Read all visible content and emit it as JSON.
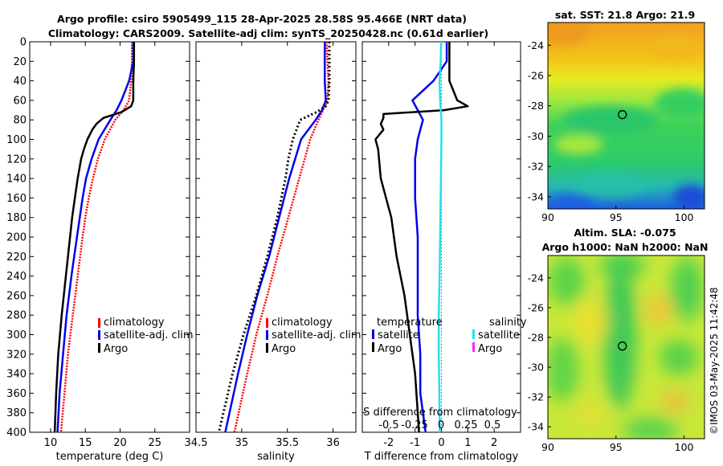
{
  "figure": {
    "title_line1": "Argo profile: csiro 5905499_115 28-Apr-2025 28.58S 95.466E (NRT data)",
    "title_line2": "Climatology: CARS2009. Satellite-adj clim: synTS_20250428.nc (0.61d earlier)",
    "stamp": "©IMOS 03-May-2025 11:42:48",
    "colors": {
      "climatology": "#ff0000",
      "satellite": "#0000ee",
      "argo": "#000000",
      "sat_salinity": "#22e0f0",
      "argo_salinity": "#ff22ff"
    }
  },
  "chart_data": [
    {
      "id": "temperature",
      "type": "line",
      "xlabel": "temperature (deg C)",
      "ylabel": "",
      "xlim": [
        7,
        30
      ],
      "ylim": [
        400,
        0
      ],
      "xticks": [
        10,
        15,
        20,
        25
      ],
      "yticks": [
        0,
        20,
        40,
        60,
        80,
        100,
        120,
        140,
        160,
        180,
        200,
        220,
        240,
        260,
        280,
        300,
        320,
        340,
        360,
        380,
        400
      ],
      "legend": {
        "position": "right",
        "entries": [
          "climatology",
          "satellite-adj. clim",
          "Argo"
        ]
      },
      "series": [
        {
          "name": "climatology",
          "color": "#ff0000",
          "style": "dash",
          "depth": [
            0,
            20,
            40,
            60,
            70,
            80,
            100,
            120,
            140,
            160,
            180,
            200,
            240,
            280,
            320,
            360,
            400
          ],
          "values": [
            21.7,
            21.7,
            21.6,
            21.3,
            20.5,
            19.3,
            17.8,
            16.8,
            16.1,
            15.5,
            15.0,
            14.6,
            13.9,
            13.2,
            12.5,
            12.0,
            11.5
          ]
        },
        {
          "name": "satellite-adj. clim",
          "color": "#0000ee",
          "style": "solid",
          "depth": [
            0,
            20,
            40,
            60,
            70,
            80,
            100,
            120,
            140,
            160,
            180,
            200,
            240,
            280,
            320,
            360,
            400
          ],
          "values": [
            21.9,
            21.9,
            21.3,
            20.2,
            19.5,
            18.6,
            16.9,
            15.9,
            15.1,
            14.6,
            14.2,
            13.8,
            13.0,
            12.3,
            11.8,
            11.3,
            11.0
          ]
        },
        {
          "name": "Argo",
          "color": "#000000",
          "style": "solid",
          "depth": [
            0,
            20,
            40,
            60,
            66,
            72,
            78,
            84,
            90,
            100,
            110,
            120,
            140,
            160,
            180,
            200,
            240,
            280,
            320,
            360,
            400
          ],
          "values": [
            22.0,
            22.0,
            21.9,
            21.9,
            21.6,
            20.2,
            17.6,
            16.6,
            16.0,
            15.3,
            14.8,
            14.4,
            13.9,
            13.5,
            13.1,
            12.8,
            12.2,
            11.6,
            11.1,
            10.8,
            10.6
          ]
        }
      ]
    },
    {
      "id": "salinity",
      "type": "line",
      "xlabel": "salinity",
      "ylabel": "",
      "xlim": [
        34.5,
        36.25
      ],
      "ylim": [
        400,
        0
      ],
      "xticks": [
        34.5,
        35,
        35.5,
        36
      ],
      "legend": {
        "position": "right",
        "entries": [
          "climatology",
          "satellite-adj. clim",
          "Argo"
        ]
      },
      "series": [
        {
          "name": "climatology",
          "color": "#ff0000",
          "style": "dash",
          "depth": [
            0,
            20,
            40,
            60,
            70,
            80,
            100,
            140,
            180,
            220,
            260,
            300,
            340,
            400
          ],
          "values": [
            35.93,
            35.94,
            35.95,
            35.94,
            35.89,
            35.84,
            35.75,
            35.63,
            35.51,
            35.39,
            35.28,
            35.16,
            35.06,
            34.92
          ]
        },
        {
          "name": "satellite-adj. clim",
          "color": "#0000ee",
          "style": "solid",
          "depth": [
            0,
            20,
            40,
            60,
            70,
            80,
            100,
            140,
            180,
            220,
            260,
            300,
            340,
            400
          ],
          "values": [
            35.91,
            35.91,
            35.91,
            35.92,
            35.88,
            35.81,
            35.65,
            35.52,
            35.41,
            35.3,
            35.17,
            35.06,
            34.96,
            34.82
          ]
        },
        {
          "name": "Argo",
          "color": "#000000",
          "style": "dot",
          "depth": [
            0,
            20,
            40,
            60,
            66,
            72,
            80,
            90,
            100,
            120,
            140,
            180,
            220,
            260,
            300,
            340,
            400
          ],
          "values": [
            35.96,
            35.96,
            35.96,
            35.95,
            35.92,
            35.82,
            35.64,
            35.6,
            35.56,
            35.51,
            35.48,
            35.39,
            35.28,
            35.16,
            35.02,
            34.9,
            34.75
          ]
        }
      ]
    },
    {
      "id": "difference",
      "type": "line",
      "xlabel": "T difference from climatology",
      "xlabel_top": "S difference from climatology",
      "xlim": [
        -3,
        3
      ],
      "ylim": [
        400,
        0
      ],
      "xticks": [
        -2,
        -1,
        0,
        1,
        2
      ],
      "xticks_salinity": [
        "-0.5",
        "-0.25",
        "0",
        "0.25",
        "0.5"
      ],
      "legend_titles": {
        "temperature": "temperature",
        "salinity": "salinity"
      },
      "legend_entries": {
        "temperature": [
          "satellite",
          "Argo"
        ],
        "salinity": [
          "satellite",
          "Argo"
        ]
      },
      "series": [
        {
          "name": "T satellite",
          "color": "#0000ee",
          "depth": [
            0,
            20,
            40,
            60,
            70,
            80,
            100,
            120,
            160,
            200,
            240,
            280,
            320,
            360,
            400
          ],
          "values": [
            0.2,
            0.2,
            -0.3,
            -1.1,
            -0.9,
            -0.7,
            -0.9,
            -1.0,
            -1.0,
            -0.9,
            -0.9,
            -0.9,
            -0.8,
            -0.8,
            -0.6
          ]
        },
        {
          "name": "T Argo",
          "color": "#000000",
          "depth": [
            0,
            20,
            40,
            60,
            66,
            70,
            74,
            78,
            84,
            90,
            100,
            110,
            140,
            180,
            220,
            260,
            300,
            340,
            380,
            400
          ],
          "values": [
            0.3,
            0.3,
            0.3,
            0.6,
            1.0,
            0.1,
            -2.2,
            -2.2,
            -2.3,
            -2.2,
            -2.5,
            -2.4,
            -2.3,
            -1.9,
            -1.7,
            -1.4,
            -1.2,
            -1.0,
            -0.9,
            -0.85
          ]
        },
        {
          "name": "S satellite",
          "color": "#22e0f0",
          "depth": [
            0,
            20,
            40,
            60,
            80,
            100,
            120,
            160,
            200,
            240,
            280,
            320,
            360,
            400
          ],
          "values": [
            -0.01,
            -0.03,
            -0.07,
            -0.05,
            0.0,
            0.0,
            -0.01,
            -0.03,
            -0.05,
            -0.07,
            -0.1,
            -0.1,
            -0.08,
            -0.06
          ]
        }
      ]
    },
    {
      "id": "sst_map",
      "type": "heatmap",
      "title": "sat. SST: 21.8 Argo: 21.9",
      "xlim": [
        90,
        101.5
      ],
      "ylim": [
        -34.8,
        -22.5
      ],
      "xticks": [
        90,
        95,
        100
      ],
      "yticks": [
        -24,
        -26,
        -28,
        -30,
        -32,
        -34
      ],
      "marker": {
        "lon": 95.466,
        "lat": -28.58
      }
    },
    {
      "id": "sla_map",
      "type": "heatmap",
      "title_line1": "Altim. SLA: -0.075",
      "title_line2": "Argo h1000: NaN h2000: NaN",
      "xlim": [
        90,
        101.5
      ],
      "ylim": [
        -34.8,
        -22.5
      ],
      "xticks": [
        90,
        95,
        100
      ],
      "yticks": [
        -24,
        -26,
        -28,
        -30,
        -32,
        -34
      ],
      "marker": {
        "lon": 95.466,
        "lat": -28.58
      }
    }
  ]
}
